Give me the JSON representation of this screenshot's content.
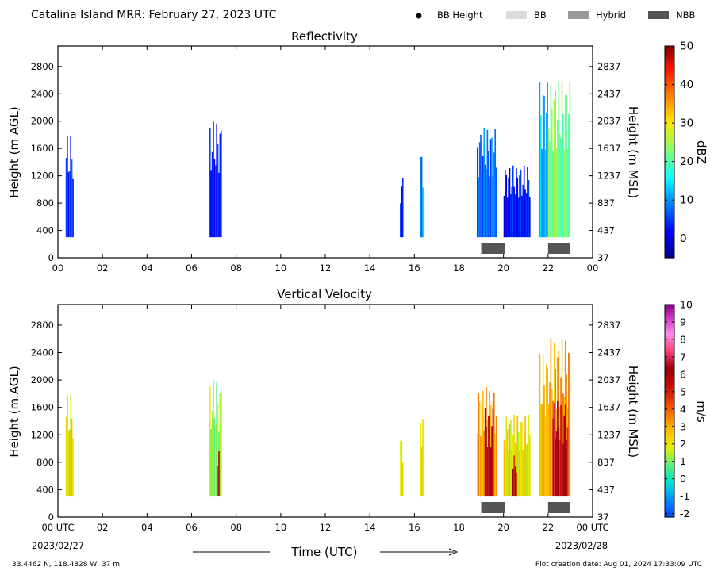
{
  "header": {
    "title": "Catalina Island MRR:  February 27, 2023 UTC",
    "legend": [
      {
        "label": "BB Height",
        "kind": "dot",
        "color": "#000000"
      },
      {
        "label": "BB",
        "kind": "box",
        "color": "#dcdcdc"
      },
      {
        "label": "Hybrid",
        "kind": "box",
        "color": "#999999"
      },
      {
        "label": "NBB",
        "kind": "box",
        "color": "#555555"
      }
    ]
  },
  "footer": {
    "coords": "33.4462 N, 118.4828 W, 37 m",
    "created": "Plot creation date: Aug 01, 2024 17:33:09 UTC",
    "xlabel": "Time (UTC)",
    "start_date": "2023/02/27",
    "end_date": "2023/02/28"
  },
  "chart_data": [
    {
      "type": "heatmap",
      "title": "Reflectivity",
      "ylabel": "Height (m AGL)",
      "y2label": "Height (m MSL)",
      "cbar_label": "dBZ",
      "xlim": [
        0,
        24
      ],
      "ylim": [
        0,
        3100
      ],
      "x_ticks": [
        "00",
        "02",
        "04",
        "06",
        "08",
        "10",
        "12",
        "14",
        "16",
        "18",
        "20",
        "22",
        "00"
      ],
      "y_ticks": [
        0,
        400,
        800,
        1200,
        1600,
        2000,
        2400,
        2800
      ],
      "y2_ticks": [
        37,
        437,
        837,
        1237,
        1637,
        2037,
        2437,
        2837
      ],
      "colorbar": {
        "min": -5,
        "max": 50,
        "ticks": [
          0,
          10,
          20,
          30,
          40,
          50
        ],
        "colormap": "jet"
      },
      "precip_periods": [
        {
          "start": 19.0,
          "end": 20.05,
          "type": "NBB"
        },
        {
          "start": 22.0,
          "end": 23.0,
          "type": "NBB"
        }
      ],
      "echo_columns": [
        {
          "start": 0.35,
          "end": 0.7,
          "base": 300,
          "top": 1800,
          "level": 5
        },
        {
          "start": 6.8,
          "end": 7.35,
          "base": 300,
          "top": 2000,
          "level": 3
        },
        {
          "start": 15.35,
          "end": 15.5,
          "base": 300,
          "top": 1200,
          "level": 1
        },
        {
          "start": 16.25,
          "end": 16.4,
          "base": 300,
          "top": 1600,
          "level": 9
        },
        {
          "start": 18.8,
          "end": 19.7,
          "base": 300,
          "top": 1900,
          "level": 8
        },
        {
          "start": 20.0,
          "end": 21.2,
          "base": 300,
          "top": 1350,
          "level": 2
        },
        {
          "start": 21.6,
          "end": 22.0,
          "base": 300,
          "top": 2600,
          "level": 12
        },
        {
          "start": 22.0,
          "end": 23.0,
          "base": 300,
          "top": 2600,
          "level": 22
        }
      ]
    },
    {
      "type": "heatmap",
      "title": "Vertical Velocity",
      "ylabel": "Height (m AGL)",
      "y2label": "Height (m MSL)",
      "cbar_label": "m/s",
      "xlim": [
        0,
        24
      ],
      "ylim": [
        0,
        3100
      ],
      "x_ticks": [
        "00 UTC",
        "02",
        "04",
        "06",
        "08",
        "10",
        "12",
        "14",
        "16",
        "18",
        "20",
        "22",
        "00 UTC"
      ],
      "y_ticks": [
        0,
        400,
        800,
        1200,
        1600,
        2000,
        2400,
        2800
      ],
      "y2_ticks": [
        37,
        437,
        837,
        1237,
        1637,
        2037,
        2437,
        2837
      ],
      "colorbar": {
        "min": -2.2,
        "max": 10,
        "ticks": [
          -2,
          -1,
          0,
          1,
          2,
          3,
          4,
          5,
          6,
          7,
          8,
          9,
          10
        ],
        "colormap": "velocity"
      },
      "precip_periods": [
        {
          "start": 19.0,
          "end": 20.05,
          "type": "NBB"
        },
        {
          "start": 22.0,
          "end": 23.0,
          "type": "NBB"
        }
      ],
      "echo_columns": [
        {
          "start": 0.35,
          "end": 0.7,
          "base": 300,
          "top": 1800,
          "level": 2.3
        },
        {
          "start": 6.8,
          "end": 7.35,
          "base": 300,
          "top": 2000,
          "level": 1.2
        },
        {
          "start": 7.15,
          "end": 7.25,
          "base": 300,
          "top": 1100,
          "level": 6.5
        },
        {
          "start": 15.35,
          "end": 15.5,
          "base": 300,
          "top": 1200,
          "level": 1.7
        },
        {
          "start": 16.25,
          "end": 16.4,
          "base": 300,
          "top": 1600,
          "level": 2.4
        },
        {
          "start": 18.8,
          "end": 19.7,
          "base": 300,
          "top": 1900,
          "level": 3.0
        },
        {
          "start": 19.15,
          "end": 19.55,
          "base": 300,
          "top": 1600,
          "level": 6.0
        },
        {
          "start": 20.0,
          "end": 21.2,
          "base": 300,
          "top": 1500,
          "level": 2.2
        },
        {
          "start": 20.4,
          "end": 20.6,
          "base": 300,
          "top": 900,
          "level": 5.5
        },
        {
          "start": 21.6,
          "end": 22.0,
          "base": 300,
          "top": 2400,
          "level": 2.6
        },
        {
          "start": 22.0,
          "end": 23.0,
          "base": 300,
          "top": 2600,
          "level": 3.2
        },
        {
          "start": 22.2,
          "end": 22.9,
          "base": 300,
          "top": 1700,
          "level": 6.3
        }
      ]
    }
  ]
}
